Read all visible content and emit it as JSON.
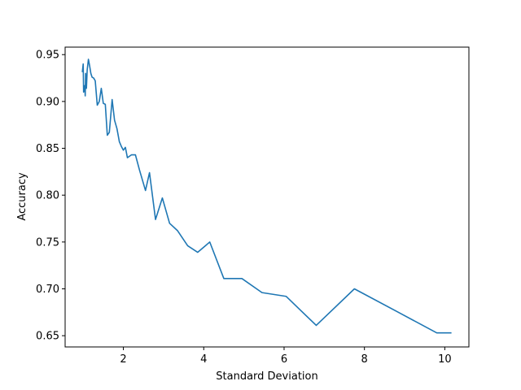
{
  "chart_data": {
    "type": "line",
    "title": "",
    "xlabel": "Standard Deviation",
    "ylabel": "Accuracy",
    "xlim": [
      0.55,
      10.6
    ],
    "ylim": [
      0.638,
      0.958
    ],
    "xticks": [
      2,
      4,
      6,
      8,
      10
    ],
    "yticks": [
      0.65,
      0.7,
      0.75,
      0.8,
      0.85,
      0.9,
      0.95
    ],
    "ytick_labels": [
      "0.65",
      "0.70",
      "0.75",
      "0.80",
      "0.85",
      "0.90",
      "0.95"
    ],
    "xtick_labels": [
      "2",
      "4",
      "6",
      "8",
      "10"
    ],
    "grid": false,
    "legend": "none",
    "series": [
      {
        "color": "#1f77b4",
        "x": [
          0.98,
          1.0,
          1.01,
          1.02,
          1.04,
          1.05,
          1.06,
          1.08,
          1.1,
          1.13,
          1.16,
          1.19,
          1.22,
          1.26,
          1.3,
          1.35,
          1.4,
          1.45,
          1.5,
          1.55,
          1.6,
          1.65,
          1.72,
          1.78,
          1.84,
          1.9,
          1.95,
          2.0,
          2.05,
          2.1,
          2.2,
          2.3,
          2.4,
          2.55,
          2.65,
          2.8,
          2.97,
          3.15,
          3.35,
          3.6,
          3.85,
          4.15,
          4.5,
          4.95,
          5.45,
          6.05,
          6.8,
          7.75,
          8.8,
          9.8,
          10.15
        ],
        "values": [
          0.932,
          0.94,
          0.91,
          0.912,
          0.917,
          0.906,
          0.93,
          0.914,
          0.934,
          0.945,
          0.938,
          0.93,
          0.926,
          0.925,
          0.922,
          0.896,
          0.9,
          0.914,
          0.898,
          0.897,
          0.864,
          0.867,
          0.902,
          0.88,
          0.871,
          0.857,
          0.852,
          0.848,
          0.851,
          0.84,
          0.843,
          0.843,
          0.827,
          0.805,
          0.824,
          0.774,
          0.797,
          0.77,
          0.762,
          0.746,
          0.739,
          0.75,
          0.711,
          0.711,
          0.696,
          0.692,
          0.661,
          0.7,
          0.676,
          0.653,
          0.653
        ]
      }
    ]
  }
}
